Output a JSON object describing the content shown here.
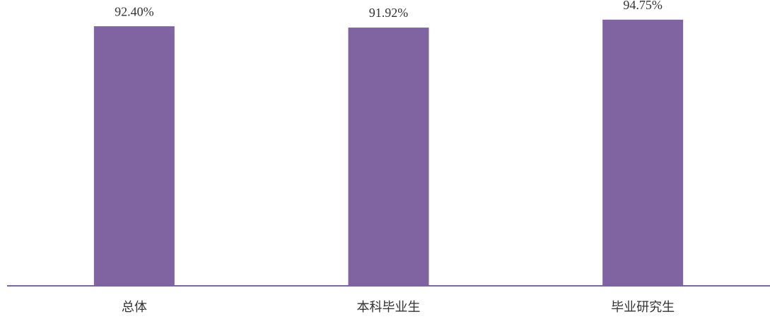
{
  "chart_data": {
    "type": "bar",
    "categories": [
      "总体",
      "本科毕业生",
      "毕业研究生"
    ],
    "values": [
      92.4,
      91.92,
      94.75
    ],
    "value_labels": [
      "92.40%",
      "91.92%",
      "94.75%"
    ],
    "color": "#8064a2"
  }
}
